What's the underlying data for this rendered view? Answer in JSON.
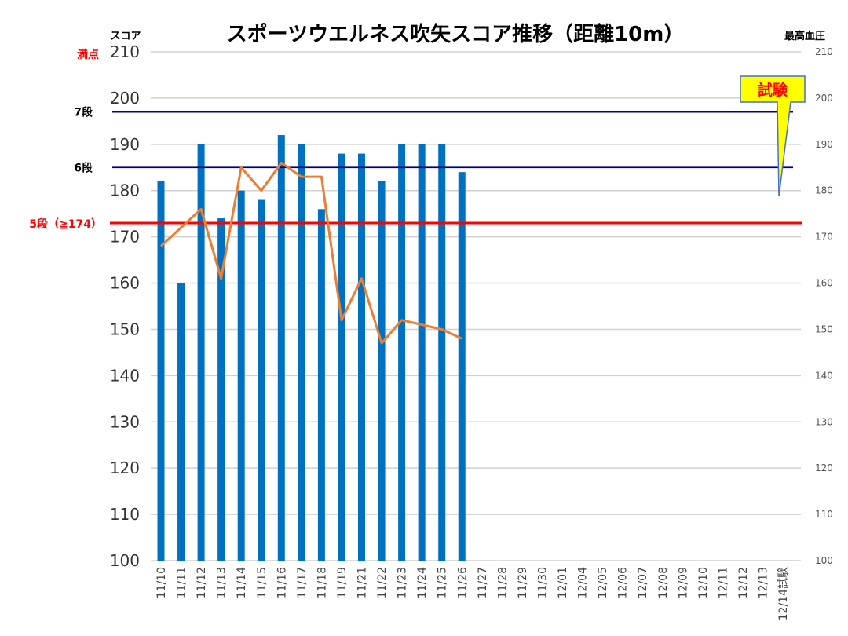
{
  "chart_data": {
    "type": "bar",
    "title": "スポーツウエルネス吹矢スコア推移（距離10m）",
    "ylabel_left": "スコア",
    "ylabel_right": "最高血圧",
    "ylim": [
      100,
      210
    ],
    "yticks": [
      100,
      110,
      120,
      130,
      140,
      150,
      160,
      170,
      180,
      190,
      200,
      210
    ],
    "y2lim": [
      100,
      210
    ],
    "y2ticks": [
      100,
      110,
      120,
      130,
      140,
      150,
      160,
      170,
      180,
      190,
      200,
      210
    ],
    "grid": true,
    "categories": [
      "11/10",
      "11/11",
      "11/12",
      "11/13",
      "11/14",
      "11/15",
      "11/16",
      "11/17",
      "11/18",
      "11/19",
      "11/21",
      "11/22",
      "11/23",
      "11/24",
      "11/25",
      "11/26",
      "11/27",
      "11/28",
      "11/29",
      "11/30",
      "12/01",
      "12/04",
      "12/05",
      "12/06",
      "12/07",
      "12/08",
      "12/09",
      "12/10",
      "12/11",
      "12/12",
      "12/13",
      "12/14試験"
    ],
    "series": [
      {
        "type": "bar",
        "color": "#0070C0",
        "values": [
          182,
          160,
          190,
          174,
          180,
          178,
          192,
          190,
          176,
          188,
          188,
          182,
          190,
          190,
          190,
          184,
          null,
          null,
          null,
          null,
          null,
          null,
          null,
          null,
          null,
          null,
          null,
          null,
          null,
          null,
          null,
          null
        ]
      },
      {
        "type": "line",
        "axis": "right",
        "color": "#ED7D31",
        "values": [
          168,
          172,
          176,
          161,
          185,
          180,
          186,
          183,
          183,
          152,
          161,
          147,
          152,
          151,
          150,
          148,
          null,
          null,
          null,
          null,
          null,
          null,
          null,
          null,
          null,
          null,
          null,
          null,
          null,
          null,
          null,
          null
        ]
      }
    ],
    "reference_lines": [
      {
        "label": "満点",
        "value": 210,
        "color": "#ff0000",
        "show_line": false
      },
      {
        "label": "7段",
        "value": 197,
        "color": "#000080",
        "show_line": true
      },
      {
        "label": "6段",
        "value": 185,
        "color": "#000080",
        "show_line": true
      },
      {
        "label": "5段（≧174）",
        "value": 173,
        "color": "#ff0000",
        "show_line": true
      }
    ],
    "callout": {
      "text": "試験",
      "fill": "#ffff00",
      "text_color": "#ff0000"
    }
  }
}
